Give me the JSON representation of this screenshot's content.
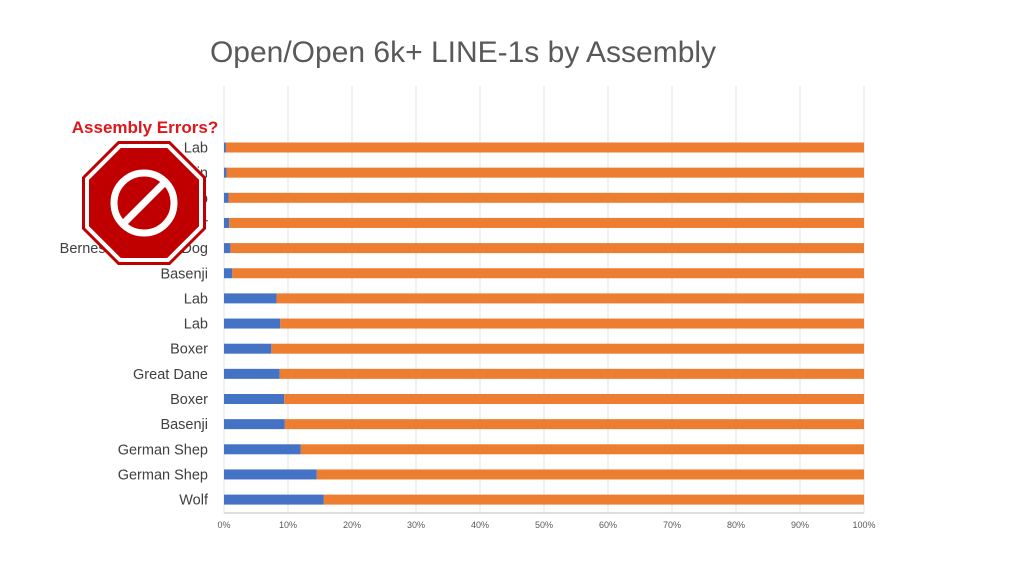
{
  "chart_data": {
    "type": "bar",
    "orientation": "horizontal",
    "stacked": "percent",
    "title": "Open/Open 6k+ LINE-1s by Assembly",
    "categories": [
      "Lab",
      "Bernese Mountain",
      "Lab",
      "Cairn Terrier",
      "Bernese Mountain Dog",
      "Basenji",
      "Lab",
      "Lab",
      "Boxer",
      "Great Dane",
      "Boxer",
      "Basenji",
      "German Shep",
      "German Shep",
      "Wolf"
    ],
    "series": [
      {
        "color": "#4472c4",
        "values": [
          0.3,
          0.4,
          0.7,
          0.8,
          1.0,
          1.3,
          8.2,
          8.8,
          7.4,
          8.7,
          9.4,
          9.5,
          12.0,
          14.5,
          15.6
        ]
      },
      {
        "color": "#ed7d31",
        "values": [
          99.7,
          99.6,
          99.3,
          99.2,
          99.0,
          98.7,
          91.8,
          91.2,
          92.6,
          91.3,
          90.6,
          90.5,
          88.0,
          85.5,
          84.4
        ]
      }
    ],
    "xlim": [
      0,
      100
    ],
    "x_ticks": [
      "0%",
      "10%",
      "20%",
      "30%",
      "40%",
      "50%",
      "60%",
      "70%",
      "80%",
      "90%",
      "100%"
    ],
    "grid": "vertical"
  },
  "annotation": {
    "label": "Assembly Errors?",
    "icon": "stop-sign-icon",
    "color": "#c00000"
  }
}
